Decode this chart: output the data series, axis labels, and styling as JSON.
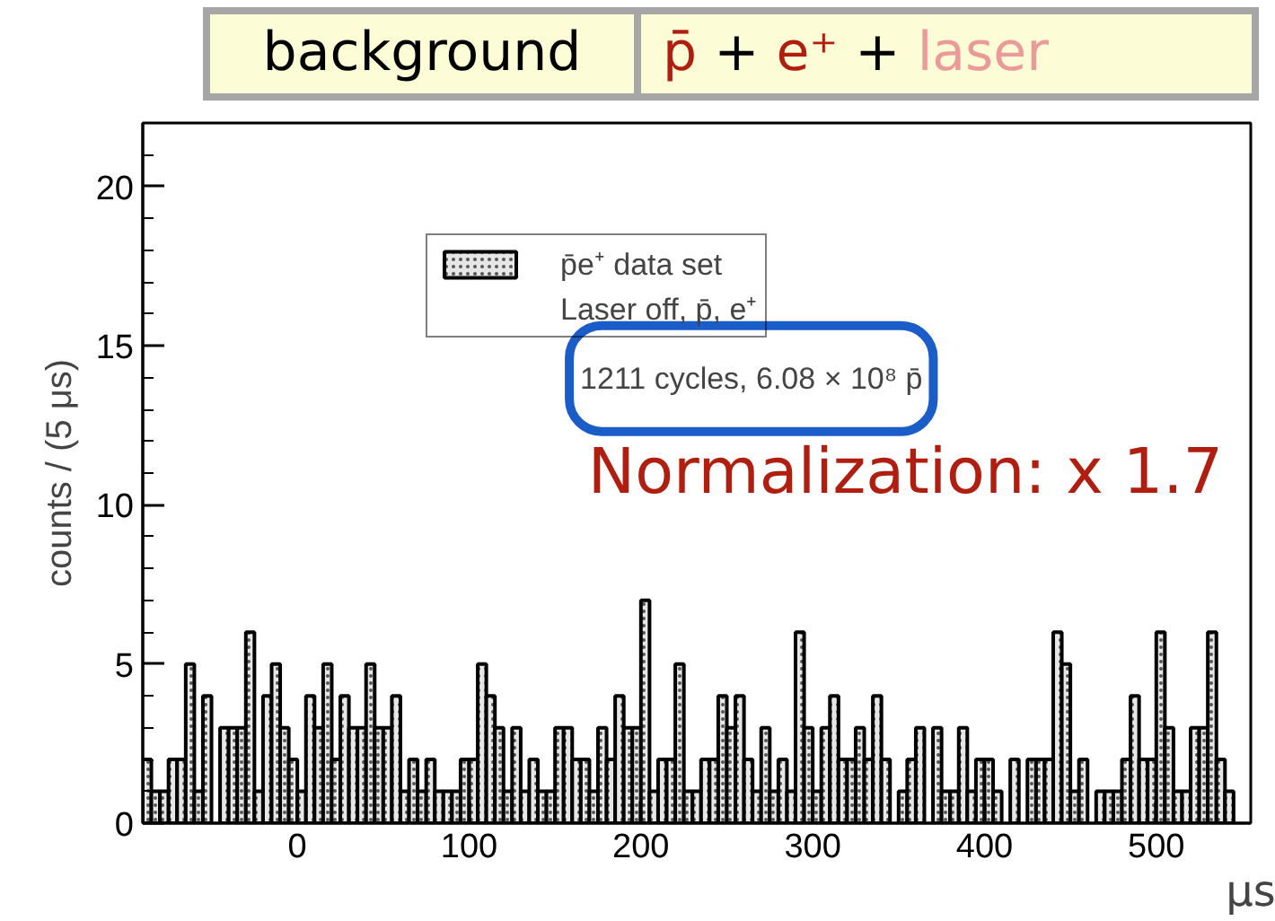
{
  "chart_data": {
    "type": "histogram",
    "title": "background",
    "subtitle": "p̄ + e⁺ + laser",
    "xlabel": "μs",
    "ylabel": "counts / (5 μs)",
    "bins": [
      -90,
      -85,
      -80,
      -75,
      -70,
      -65,
      -60,
      -55,
      -50,
      -45,
      -40,
      -35,
      -30,
      -25,
      -20,
      -15,
      -10,
      -5,
      0,
      5,
      10,
      15,
      20,
      25,
      30,
      35,
      40,
      45,
      50,
      55,
      60,
      65,
      70,
      75,
      80,
      85,
      90,
      95,
      100,
      105,
      110,
      115,
      120,
      125,
      130,
      135,
      140,
      145,
      150,
      155,
      160,
      165,
      170,
      175,
      180,
      185,
      190,
      195,
      200,
      205,
      210,
      215,
      220,
      225,
      230,
      235,
      240,
      245,
      250,
      255,
      260,
      265,
      270,
      275,
      280,
      285,
      290,
      295,
      300,
      305,
      310,
      315,
      320,
      325,
      330,
      335,
      340,
      345,
      350,
      355,
      360,
      365,
      370,
      375,
      380,
      385,
      390,
      395,
      400,
      405,
      410,
      415,
      420,
      425,
      430,
      435,
      440,
      445,
      450,
      455,
      460,
      465,
      470,
      475,
      480,
      485,
      490,
      495,
      500,
      505,
      510,
      515,
      520,
      525,
      530,
      535,
      540,
      545,
      550,
      555
    ],
    "series": [
      {
        "name": "p̄e⁺ data set",
        "color": "#e6e6e6",
        "values": [
          2,
          1,
          1,
          2,
          2,
          5,
          1,
          4,
          0,
          3,
          3,
          3,
          6,
          1,
          4,
          5,
          3,
          2,
          1,
          4,
          3,
          5,
          2,
          4,
          3,
          3,
          5,
          3,
          3,
          4,
          1,
          2,
          1,
          2,
          1,
          1,
          1,
          2,
          2,
          5,
          4,
          3,
          1,
          3,
          1,
          2,
          1,
          1,
          3,
          3,
          2,
          2,
          1,
          3,
          2,
          4,
          3,
          3,
          7,
          1,
          2,
          2,
          5,
          1,
          1,
          2,
          2,
          4,
          3,
          4,
          2,
          1,
          3,
          1,
          2,
          1,
          6,
          3,
          1,
          3,
          4,
          2,
          2,
          3,
          2,
          4,
          2,
          0,
          1,
          2,
          3,
          0,
          3,
          1,
          1,
          3,
          1,
          2,
          2,
          1,
          0,
          2,
          0,
          2,
          2,
          2,
          6,
          5,
          1,
          2,
          0,
          1,
          1,
          1,
          2,
          4,
          2,
          2,
          6,
          3,
          1,
          1,
          3,
          3,
          6,
          2,
          1,
          0,
          0
        ]
      }
    ],
    "annotations": [
      "Laser off, p̄, e⁺",
      "1211 cycles, 6.08 × 10⁸ p̄",
      "Normalization: x 1.7"
    ],
    "xlim": [
      -90,
      555
    ],
    "ylim": [
      0,
      22
    ],
    "xticks": [
      0,
      100,
      200,
      300,
      400,
      500
    ],
    "yticks": [
      0,
      5,
      10,
      15,
      20
    ],
    "legend": "top"
  }
}
